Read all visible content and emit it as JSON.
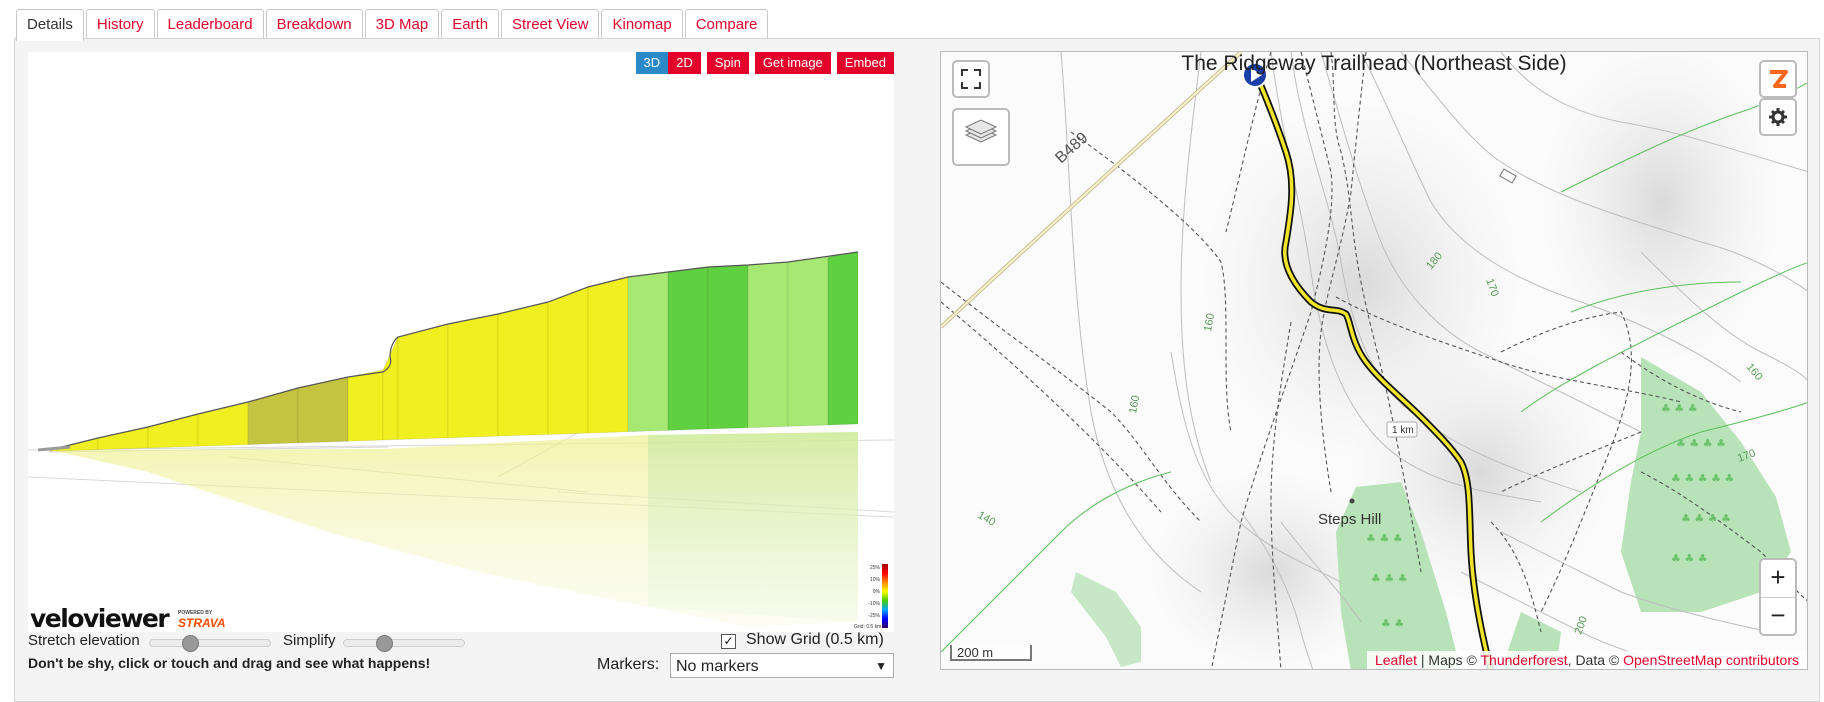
{
  "tabs": [
    {
      "label": "Details",
      "active": true
    },
    {
      "label": "History"
    },
    {
      "label": "Leaderboard"
    },
    {
      "label": "Breakdown"
    },
    {
      "label": "3D Map"
    },
    {
      "label": "Earth"
    },
    {
      "label": "Street View"
    },
    {
      "label": "Kinomap"
    },
    {
      "label": "Compare"
    }
  ],
  "viewer": {
    "buttons": {
      "btn3d": "3D",
      "btn2d": "2D",
      "spin": "Spin",
      "get_image": "Get image",
      "embed": "Embed"
    },
    "logo": "veloviewer",
    "powered_by": "POWERED BY",
    "strava": "STRAVA",
    "legend": [
      "25%",
      "10%",
      "0%",
      "-10%",
      "-25%"
    ],
    "grid_caption": "Grid: 0.5 km",
    "colors": {
      "flat": "#f0f020",
      "dim": "#c4c440",
      "green": "#5fd040",
      "light_green": "#a6e872"
    }
  },
  "controls": {
    "stretch_label": "Stretch elevation",
    "simplify_label": "Simplify",
    "stretch_value": 0.3,
    "simplify_value": 0.3,
    "hint": "Don't be shy, click or touch and drag and see what happens!",
    "show_grid_label": "Show Grid (0.5 km)",
    "show_grid_checked": true,
    "markers_label": "Markers:",
    "markers_value": "No markers"
  },
  "map": {
    "title": "The Ridgeway Trailhead (Northeast Side)",
    "road_label": "B489",
    "place_label": "Steps Hill",
    "km_marker": "1 km",
    "contours": [
      "160",
      "160",
      "180",
      "170",
      "160",
      "170",
      "140",
      "200"
    ],
    "scale": "200 m",
    "zoom_in": "+",
    "zoom_out": "−",
    "attribution": {
      "leaflet": "Leaflet",
      "sep": " | Maps © ",
      "thunderforest": "Thunderforest",
      "data": ", Data © ",
      "osm": "OpenStreetMap contributors"
    },
    "colors": {
      "route": "#f0e52a",
      "route_outline": "#111111",
      "forest": "#b8e2b8",
      "contour": "#bcbcbc",
      "road": "#d8c878"
    }
  }
}
